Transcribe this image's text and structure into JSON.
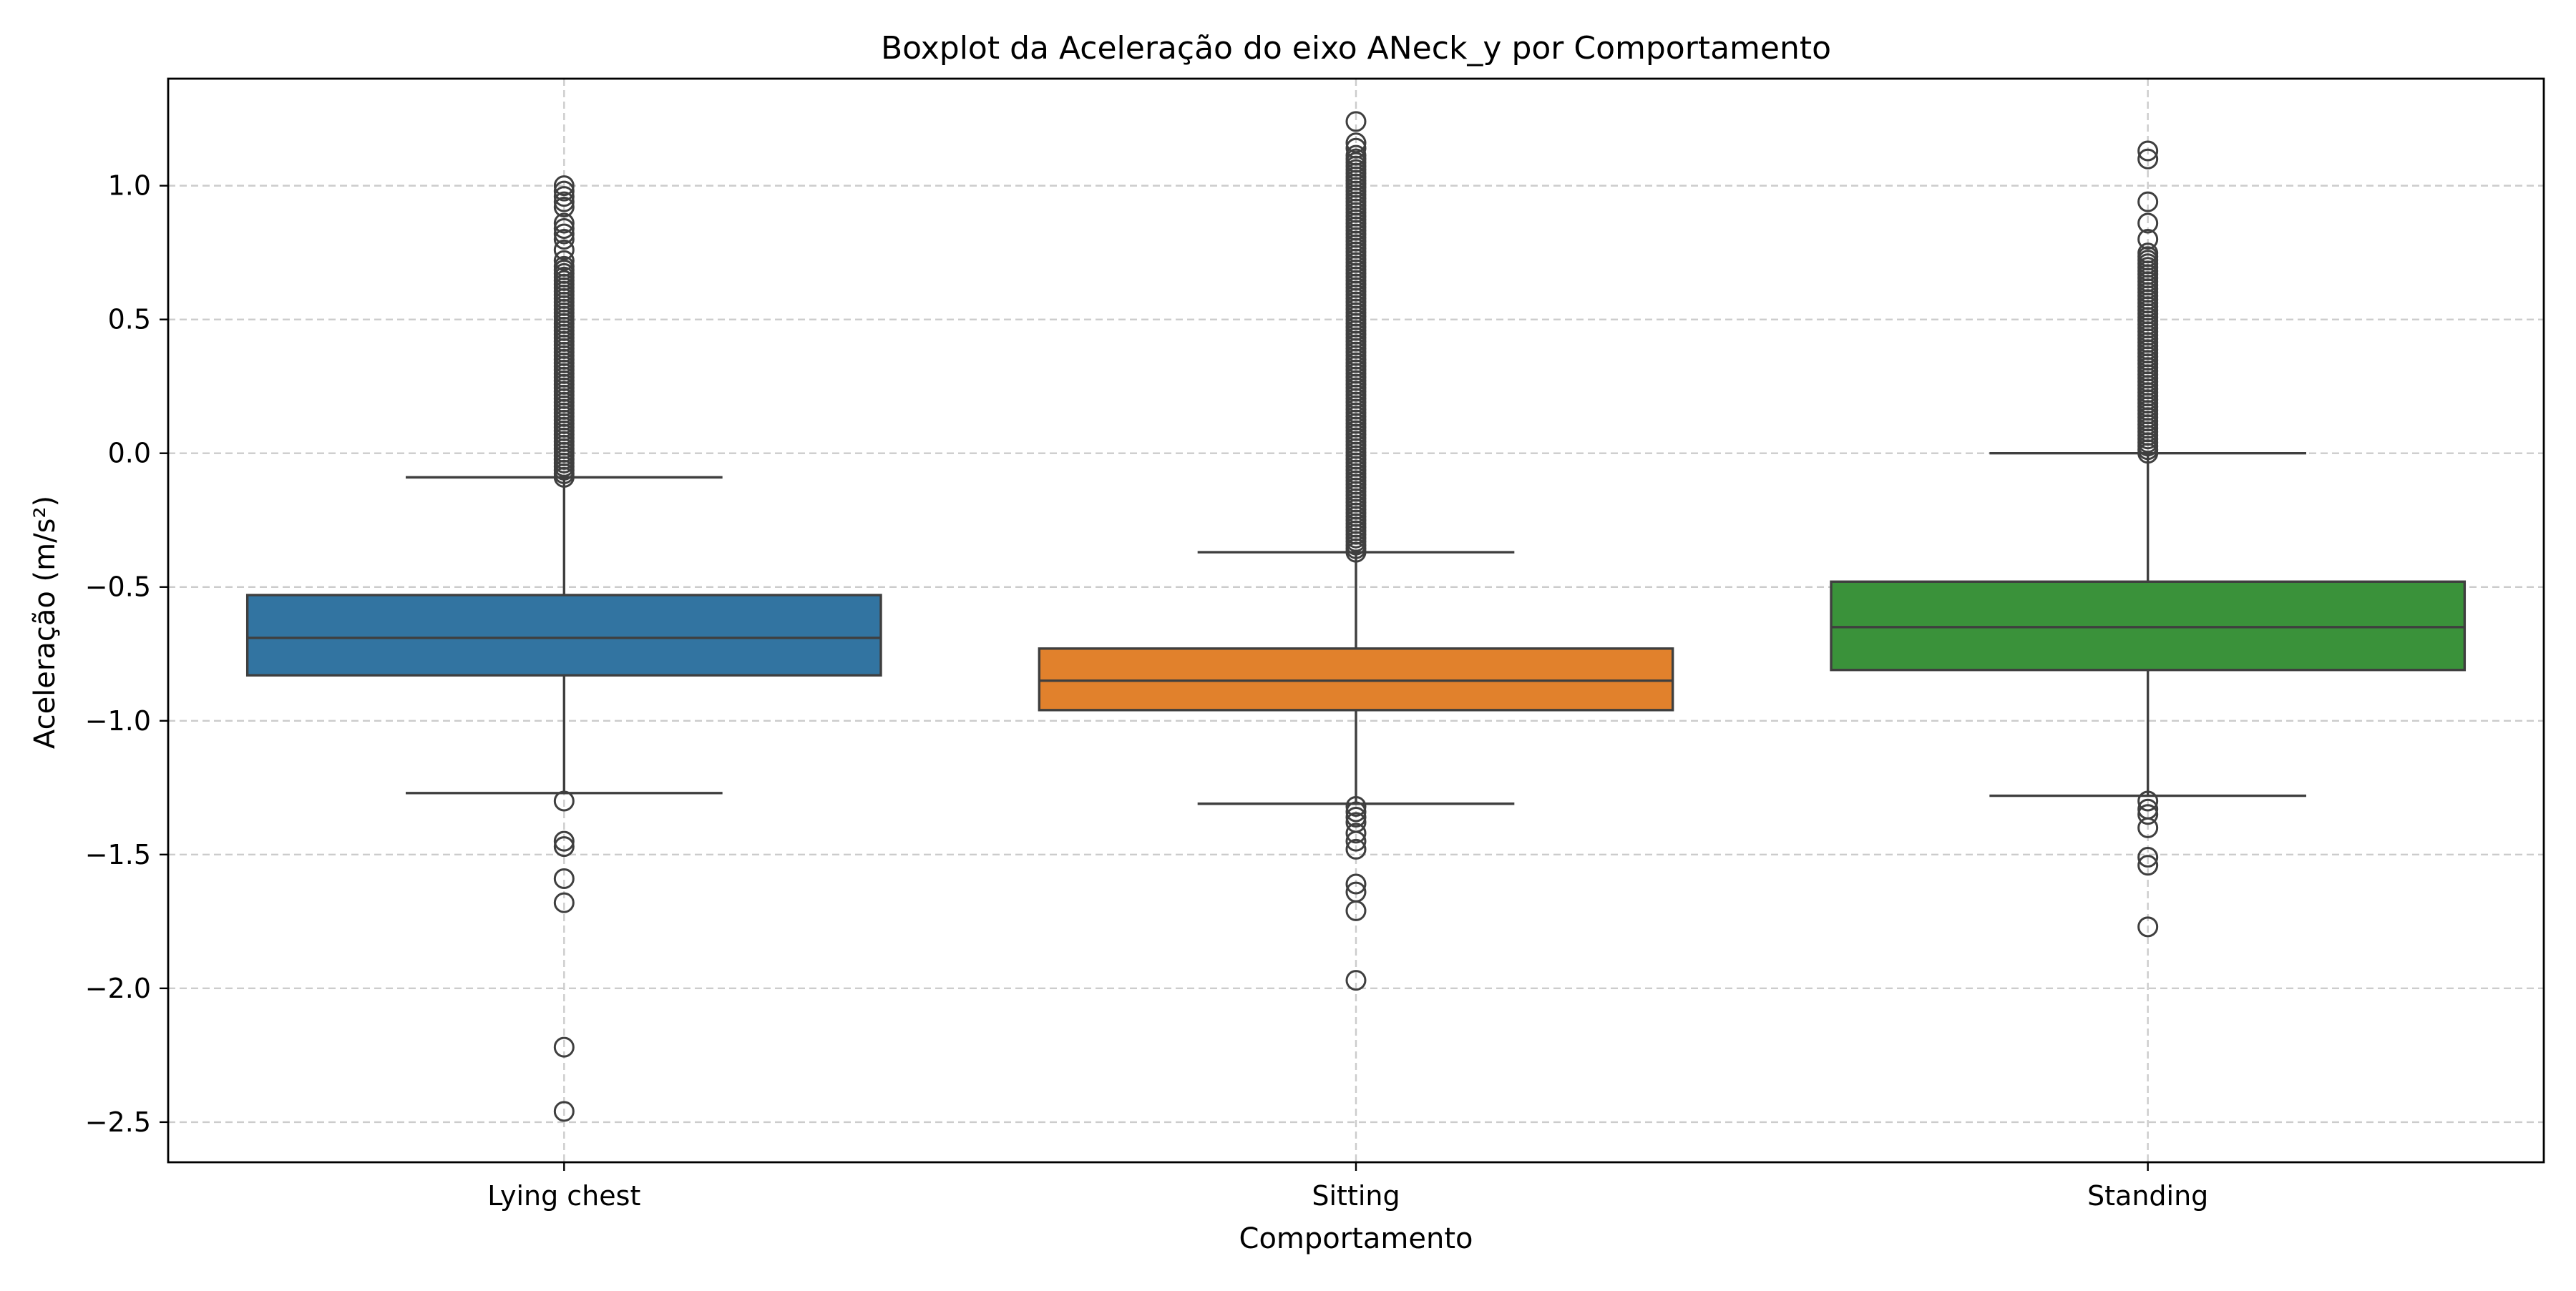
{
  "chart_data": {
    "type": "boxplot",
    "title": "Boxplot da Aceleração do eixo ANeck_y por Comportamento",
    "xlabel": "Comportamento",
    "ylabel": "Aceleração (m/s²)",
    "ylim": [
      -2.65,
      1.4
    ],
    "yticks": [
      1.0,
      0.5,
      0.0,
      -0.5,
      -1.0,
      -1.5,
      -2.0,
      -2.5
    ],
    "ytick_labels": [
      "1.0",
      "0.5",
      "0.0",
      "−0.5",
      "−1.0",
      "−1.5",
      "−2.0",
      "−2.5"
    ],
    "grid": true,
    "categories": [
      "Lying chest",
      "Sitting",
      "Standing"
    ],
    "series": [
      {
        "category": "Lying chest",
        "color": "#3274a1",
        "whisker_low": -1.27,
        "q1": -0.83,
        "median": -0.69,
        "q3": -0.53,
        "whisker_high": -0.09,
        "outliers_high_dense_range": [
          -0.09,
          0.7
        ],
        "outliers": [
          0.72,
          0.76,
          0.8,
          0.82,
          0.84,
          0.86,
          0.92,
          0.94,
          0.96,
          0.98,
          1.0,
          -1.3,
          -1.45,
          -1.47,
          -1.59,
          -1.68,
          -2.22,
          -2.46
        ]
      },
      {
        "category": "Sitting",
        "color": "#e1812c",
        "whisker_low": -1.31,
        "q1": -0.96,
        "median": -0.85,
        "q3": -0.73,
        "whisker_high": -0.37,
        "outliers_high_dense_range": [
          -0.37,
          1.12
        ],
        "outliers": [
          1.14,
          1.16,
          1.24,
          -1.32,
          -1.34,
          -1.36,
          -1.38,
          -1.42,
          -1.45,
          -1.48,
          -1.61,
          -1.64,
          -1.71,
          -1.97
        ]
      },
      {
        "category": "Standing",
        "color": "#3a923a",
        "whisker_low": -1.28,
        "q1": -0.81,
        "median": -0.65,
        "q3": -0.48,
        "whisker_high": 0.0,
        "outliers_high_dense_range": [
          0.0,
          0.76
        ],
        "outliers": [
          0.8,
          0.86,
          0.94,
          1.1,
          1.13,
          -1.3,
          -1.33,
          -1.35,
          -1.4,
          -1.51,
          -1.54,
          -1.77
        ]
      }
    ]
  }
}
